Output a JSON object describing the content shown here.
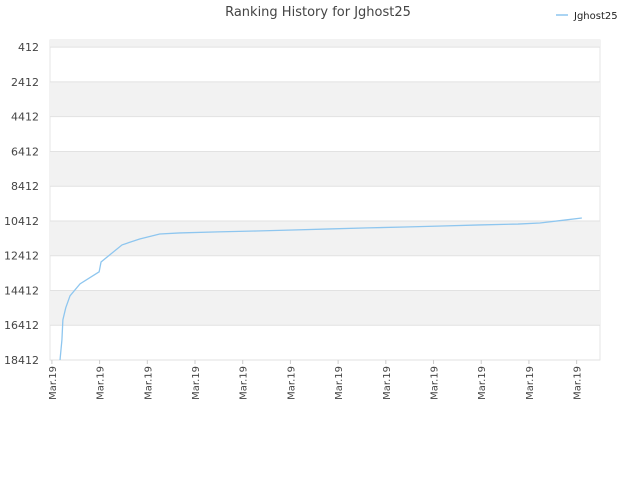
{
  "chart_data": {
    "type": "line",
    "title": "Ranking History for Jghost25",
    "x": [
      0.17,
      0.21,
      0.23,
      0.29,
      0.38,
      0.59,
      0.99,
      1.03,
      1.47,
      1.84,
      2.26,
      2.68,
      3.48,
      4.28,
      5.05,
      5.83,
      6.62,
      7.4,
      8.18,
      8.97,
      9.77,
      10.23,
      10.75,
      11.11
    ],
    "series": [
      {
        "name": "Jghost25",
        "color": "#8ec6ef",
        "values": [
          18412,
          17250,
          16100,
          15410,
          14720,
          14030,
          13340,
          12770,
          11790,
          11450,
          11160,
          11100,
          11040,
          10990,
          10930,
          10870,
          10810,
          10760,
          10700,
          10640,
          10590,
          10530,
          10360,
          10240
        ]
      }
    ],
    "xlim": [
      -0.04,
      11.49
    ],
    "xticks": [
      {
        "value": 0,
        "label": "Mar.19"
      },
      {
        "value": 1,
        "label": "Mar.19"
      },
      {
        "value": 2,
        "label": "Mar.19"
      },
      {
        "value": 3,
        "label": "Mar.19"
      },
      {
        "value": 4,
        "label": "Mar.19"
      },
      {
        "value": 5,
        "label": "Mar.19"
      },
      {
        "value": 6,
        "label": "Mar.19"
      },
      {
        "value": 7,
        "label": "Mar.19"
      },
      {
        "value": 8,
        "label": "Mar.19"
      },
      {
        "value": 9,
        "label": "Mar.19"
      },
      {
        "value": 10,
        "label": "Mar.19"
      },
      {
        "value": 11,
        "label": "Mar.19"
      }
    ],
    "ylim": [
      18412,
      0
    ],
    "yticks": [
      412,
      2412,
      4412,
      6412,
      8412,
      10412,
      12412,
      14412,
      16412,
      18412
    ],
    "grid": true,
    "legend": "top-right"
  }
}
